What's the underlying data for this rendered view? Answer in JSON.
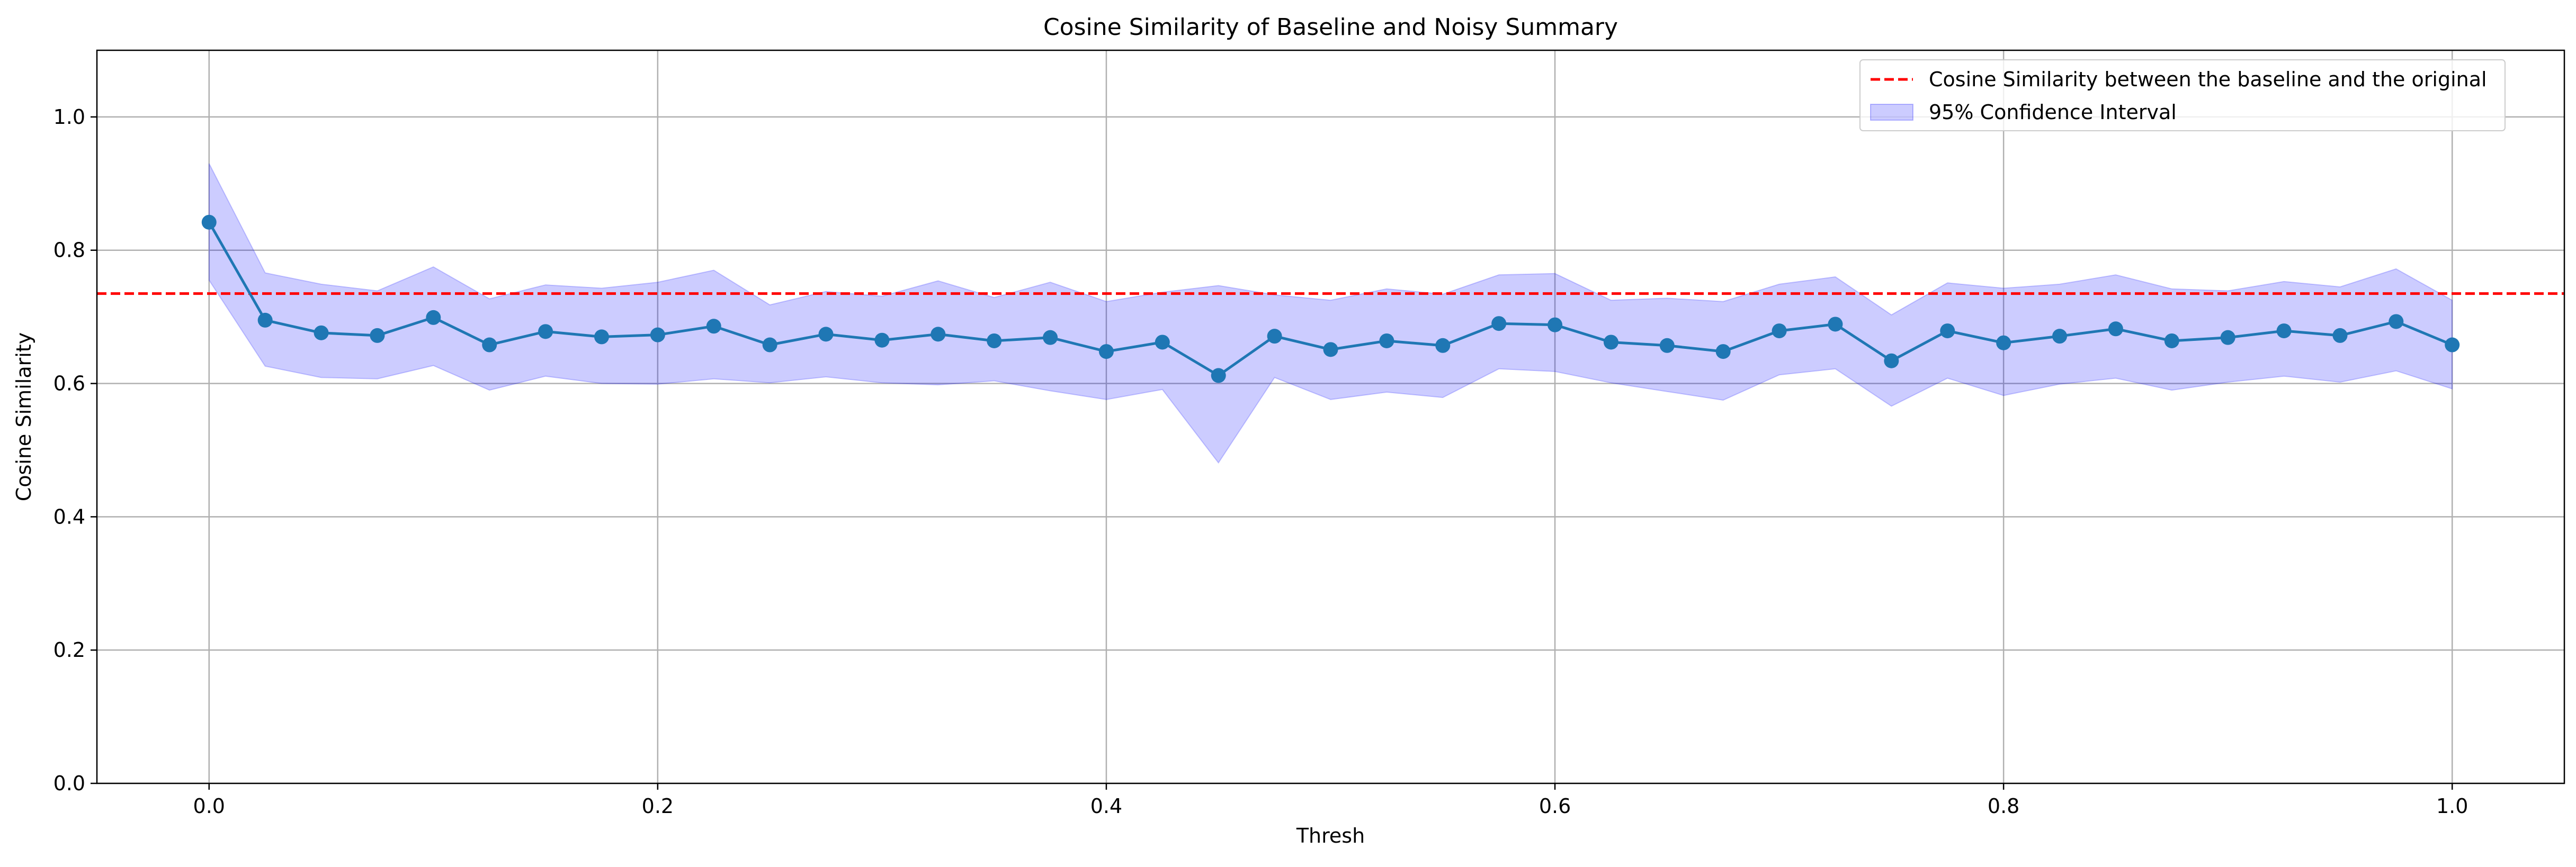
{
  "chart_data": {
    "type": "line",
    "title": "Cosine Similarity of Baseline and Noisy Summary",
    "xlabel": "Thresh",
    "ylabel": "Cosine Similarity",
    "xlim": [
      -0.05,
      1.05
    ],
    "ylim": [
      0.0,
      1.1
    ],
    "xticks": [
      0.0,
      0.2,
      0.4,
      0.6,
      0.8,
      1.0
    ],
    "xtick_labels": [
      "0.0",
      "0.2",
      "0.4",
      "0.6",
      "0.8",
      "1.0"
    ],
    "yticks": [
      0.0,
      0.2,
      0.4,
      0.6,
      0.8,
      1.0
    ],
    "ytick_labels": [
      "0.0",
      "0.2",
      "0.4",
      "0.6",
      "0.8",
      "1.0"
    ],
    "grid": true,
    "legend_position": "top-right",
    "series": [
      {
        "kind": "line-with-markers",
        "color": "#1f77b4",
        "x": [
          0.0,
          0.025,
          0.05,
          0.075,
          0.1,
          0.125,
          0.15,
          0.175,
          0.2,
          0.225,
          0.25,
          0.275,
          0.3,
          0.325,
          0.35,
          0.375,
          0.4,
          0.425,
          0.45,
          0.475,
          0.5,
          0.525,
          0.55,
          0.575,
          0.6,
          0.625,
          0.65,
          0.675,
          0.7,
          0.725,
          0.75,
          0.775,
          0.8,
          0.825,
          0.85,
          0.875,
          0.9,
          0.925,
          0.95,
          0.975,
          1.0
        ],
        "y": [
          0.842,
          0.695,
          0.676,
          0.672,
          0.699,
          0.658,
          0.678,
          0.67,
          0.673,
          0.686,
          0.658,
          0.674,
          0.665,
          0.674,
          0.664,
          0.669,
          0.648,
          0.662,
          0.612,
          0.671,
          0.651,
          0.664,
          0.657,
          0.69,
          0.688,
          0.662,
          0.657,
          0.648,
          0.679,
          0.689,
          0.634,
          0.679,
          0.661,
          0.671,
          0.682,
          0.664,
          0.669,
          0.679,
          0.672,
          0.693,
          0.658
        ]
      },
      {
        "name": "95% Confidence Interval",
        "kind": "band",
        "color": "#0000ff",
        "lower": [
          0.755,
          0.626,
          0.609,
          0.607,
          0.627,
          0.59,
          0.611,
          0.6,
          0.599,
          0.607,
          0.601,
          0.61,
          0.601,
          0.598,
          0.604,
          0.589,
          0.576,
          0.591,
          0.481,
          0.609,
          0.576,
          0.587,
          0.579,
          0.622,
          0.618,
          0.601,
          0.588,
          0.575,
          0.613,
          0.622,
          0.566,
          0.608,
          0.582,
          0.599,
          0.608,
          0.59,
          0.602,
          0.611,
          0.602,
          0.619,
          0.592
        ],
        "upper": [
          0.93,
          0.766,
          0.749,
          0.739,
          0.775,
          0.727,
          0.748,
          0.743,
          0.752,
          0.77,
          0.718,
          0.738,
          0.731,
          0.754,
          0.729,
          0.752,
          0.723,
          0.737,
          0.747,
          0.733,
          0.725,
          0.742,
          0.734,
          0.763,
          0.765,
          0.725,
          0.728,
          0.723,
          0.749,
          0.76,
          0.703,
          0.751,
          0.743,
          0.749,
          0.763,
          0.742,
          0.739,
          0.753,
          0.745,
          0.772,
          0.725
        ]
      },
      {
        "name": "Cosine Similarity between the baseline and the original",
        "kind": "hline",
        "color": "#ff0000",
        "linestyle": "dashed",
        "y": 0.735
      }
    ]
  }
}
